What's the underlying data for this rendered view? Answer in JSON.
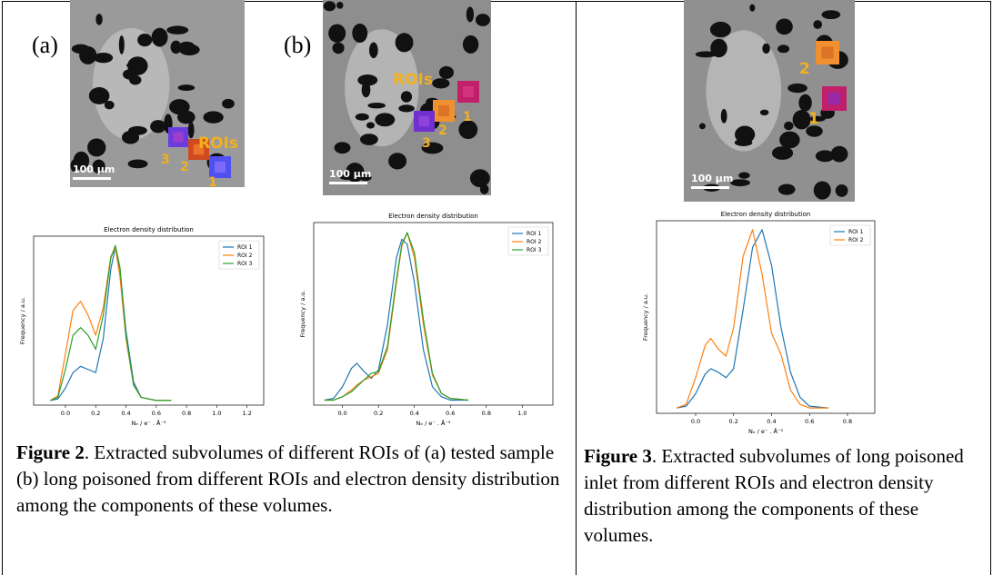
{
  "figure2": {
    "panels": [
      {
        "label": "(a)",
        "image": {
          "roi_title": "ROIs",
          "roi_numbers": [
            "1",
            "2",
            "3"
          ],
          "scale_bar": "100 µm"
        },
        "chart": {
          "type": "line",
          "title": "Electron density distribution",
          "xlabel": "Nₑ / e⁻ . Å⁻³",
          "ylabel": "Frequency / a.u.",
          "x": [
            -0.1,
            -0.05,
            0,
            0.05,
            0.1,
            0.15,
            0.2,
            0.25,
            0.3,
            0.33,
            0.36,
            0.4,
            0.45,
            0.5,
            0.6,
            0.7
          ],
          "series": [
            {
              "name": "ROI 1",
              "color": "#1f77b4",
              "values": [
                0,
                0.01,
                0.08,
                0.18,
                0.22,
                0.2,
                0.18,
                0.4,
                0.85,
                0.99,
                0.85,
                0.45,
                0.12,
                0.02,
                0,
                0
              ]
            },
            {
              "name": "ROI 2",
              "color": "#ff7f0e",
              "values": [
                0,
                0.03,
                0.3,
                0.58,
                0.64,
                0.55,
                0.42,
                0.6,
                0.93,
                0.98,
                0.8,
                0.4,
                0.1,
                0.02,
                0,
                0
              ]
            },
            {
              "name": "ROI 3",
              "color": "#2ca02c",
              "values": [
                0,
                0.02,
                0.2,
                0.42,
                0.47,
                0.42,
                0.33,
                0.55,
                0.92,
                1.0,
                0.86,
                0.42,
                0.1,
                0.02,
                0,
                0
              ]
            }
          ],
          "xlim": [
            -0.21,
            1.31
          ],
          "ylim": [
            -0.03,
            1.06
          ],
          "xticks": [
            {
              "value": 0,
              "label": "0.0"
            },
            {
              "value": 0.2,
              "label": "0.2"
            },
            {
              "value": 0.4,
              "label": "0.4"
            },
            {
              "value": 0.6,
              "label": "0.6"
            },
            {
              "value": 0.8,
              "label": "0.8"
            },
            {
              "value": 1,
              "label": "1.0"
            },
            {
              "value": 1.2,
              "label": "1.2"
            }
          ]
        }
      },
      {
        "label": "(b)",
        "image": {
          "roi_title": "ROIs",
          "roi_numbers": [
            "1",
            "2",
            "3"
          ],
          "scale_bar": "100 µm"
        },
        "chart": {
          "type": "line",
          "title": "Electron density distribution",
          "xlabel": "Nₑ / e⁻ . Å⁻³",
          "ylabel": "Frequency / a.u.",
          "x": [
            -0.1,
            -0.05,
            0,
            0.05,
            0.08,
            0.12,
            0.16,
            0.2,
            0.25,
            0.3,
            0.33,
            0.36,
            0.4,
            0.45,
            0.5,
            0.55,
            0.6,
            0.7
          ],
          "series": [
            {
              "name": "ROI 1",
              "color": "#1f77b4",
              "values": [
                0,
                0.01,
                0.08,
                0.19,
                0.22,
                0.17,
                0.13,
                0.18,
                0.45,
                0.85,
                0.96,
                0.93,
                0.7,
                0.3,
                0.08,
                0.02,
                0,
                0
              ]
            },
            {
              "name": "ROI 2",
              "color": "#ff7f0e",
              "values": [
                0,
                0,
                0.02,
                0.06,
                0.09,
                0.12,
                0.14,
                0.16,
                0.3,
                0.7,
                0.92,
                1.0,
                0.85,
                0.45,
                0.15,
                0.04,
                0.01,
                0
              ]
            },
            {
              "name": "ROI 3",
              "color": "#2ca02c",
              "values": [
                0,
                0,
                0.02,
                0.05,
                0.08,
                0.12,
                0.16,
                0.17,
                0.32,
                0.72,
                0.93,
                1.0,
                0.88,
                0.48,
                0.16,
                0.04,
                0.01,
                0
              ]
            }
          ],
          "xlim": [
            -0.16,
            1.17
          ],
          "ylim": [
            -0.03,
            1.06
          ],
          "xticks": [
            {
              "value": 0,
              "label": "0.0"
            },
            {
              "value": 0.2,
              "label": "0.2"
            },
            {
              "value": 0.4,
              "label": "0.4"
            },
            {
              "value": 0.6,
              "label": "0.6"
            },
            {
              "value": 0.8,
              "label": "0.8"
            },
            {
              "value": 1,
              "label": "1.0"
            }
          ]
        }
      }
    ],
    "caption": {
      "label": "Figure 2",
      "text": ". Extracted subvolumes of different ROIs of (a) tested sample (b) long poisoned from different ROIs and electron density distribution among the components of these volumes."
    }
  },
  "figure3": {
    "panel": {
      "image": {
        "roi_numbers": [
          "1",
          "2"
        ],
        "scale_bar": "100 µm"
      },
      "chart": {
        "type": "line",
        "title": "Electron density distribution",
        "xlabel": "Nₑ / e⁻ . Å⁻³",
        "ylabel": "Frequency / a.u.",
        "x": [
          -0.1,
          -0.05,
          0,
          0.05,
          0.08,
          0.12,
          0.16,
          0.2,
          0.25,
          0.3,
          0.35,
          0.4,
          0.45,
          0.5,
          0.55,
          0.6,
          0.7
        ],
        "series": [
          {
            "name": "ROI 1",
            "color": "#1f77b4",
            "values": [
              0,
              0.01,
              0.08,
              0.19,
              0.22,
              0.2,
              0.17,
              0.22,
              0.55,
              0.9,
              1.0,
              0.8,
              0.45,
              0.2,
              0.06,
              0.01,
              0
            ]
          },
          {
            "name": "ROI 2",
            "color": "#ff7f0e",
            "values": [
              0,
              0.02,
              0.17,
              0.35,
              0.39,
              0.33,
              0.29,
              0.45,
              0.85,
              1.0,
              0.75,
              0.42,
              0.3,
              0.1,
              0.02,
              0,
              0
            ]
          }
        ],
        "xlim": [
          -0.206,
          0.944
        ],
        "ylim": [
          -0.03,
          1.05
        ],
        "xticks": [
          {
            "value": 0,
            "label": "0.0"
          },
          {
            "value": 0.2,
            "label": "0.2"
          },
          {
            "value": 0.4,
            "label": "0.4"
          },
          {
            "value": 0.6,
            "label": "0.6"
          },
          {
            "value": 0.8,
            "label": "0.8"
          }
        ]
      }
    },
    "caption": {
      "label": "Figure 3",
      "text": ". Extracted subvolumes of long poisoned inlet from different ROIs and electron density distribution among the components of these volumes."
    }
  }
}
